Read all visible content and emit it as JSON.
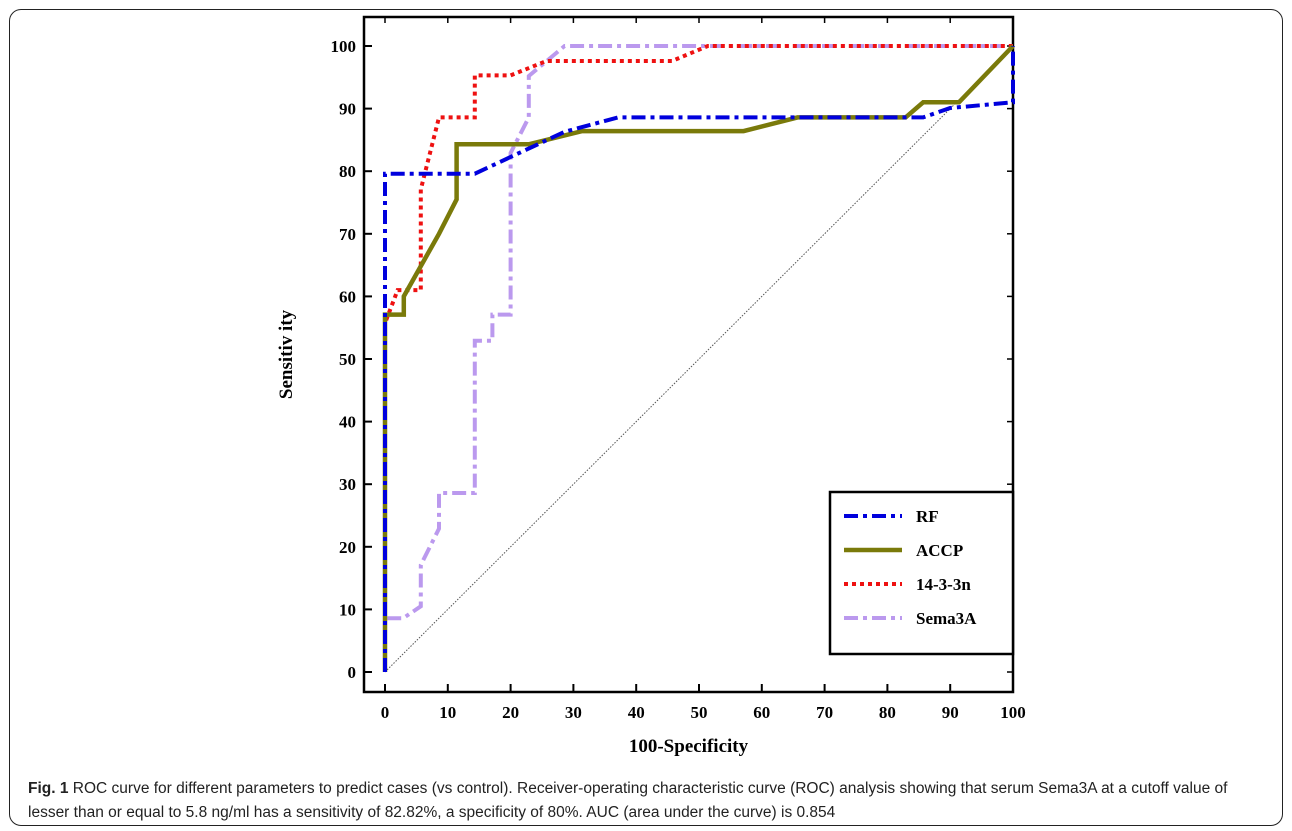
{
  "caption": {
    "label": "Fig. 1",
    "text": " ROC curve for different parameters to predict cases (vs control). Receiver-operating characteristic curve (ROC) analysis showing that serum Sema3A at a cutoff value of lesser than or equal to 5.8 ng/ml has a sensitivity of 82.82%, a specificity of 80%. AUC (area under the curve) is 0.854"
  },
  "chart_data": {
    "type": "line",
    "title": "",
    "xlabel": "100-Specificity",
    "ylabel": "Sensitiv ity",
    "xlim": [
      0,
      100
    ],
    "ylim": [
      0,
      100
    ],
    "xticks": [
      0,
      10,
      20,
      30,
      40,
      50,
      60,
      70,
      80,
      90,
      100
    ],
    "yticks": [
      0,
      10,
      20,
      30,
      40,
      50,
      60,
      70,
      80,
      90,
      100
    ],
    "grid": false,
    "legend_position": "bottom-right",
    "reference_line": {
      "x": [
        0,
        100
      ],
      "y": [
        0,
        100
      ],
      "color": "#555555"
    },
    "series": [
      {
        "name": "RF",
        "color": "#0000dd",
        "style": "dashdot",
        "x": [
          0,
          0,
          0,
          0,
          14.3,
          28.6,
          37.1,
          42.9,
          57.1,
          71.4,
          82.9,
          85.7,
          90,
          100,
          100
        ],
        "y": [
          0,
          57.1,
          60,
          79.6,
          79.6,
          86.3,
          88.6,
          88.6,
          88.6,
          88.6,
          88.6,
          88.6,
          90.1,
          91,
          100
        ]
      },
      {
        "name": "ACCP",
        "color": "#7a7a0a",
        "style": "solid",
        "x": [
          0,
          0,
          3,
          3,
          8.6,
          11.4,
          11.4,
          22.9,
          31.4,
          57.1,
          65.7,
          82.9,
          85.7,
          91.4,
          100
        ],
        "y": [
          0,
          57.1,
          57.1,
          60,
          70,
          75.5,
          84.3,
          84.3,
          86.4,
          86.4,
          88.6,
          88.6,
          91,
          91,
          100
        ]
      },
      {
        "name": "14-3-3n",
        "color": "#ee1111",
        "style": "dotted",
        "x": [
          0,
          0,
          2,
          5.7,
          5.7,
          8.6,
          14.3,
          14.3,
          20,
          25.7,
          25.7,
          45.7,
          51.4,
          100
        ],
        "y": [
          0,
          55.7,
          61,
          61,
          77.1,
          88.6,
          88.6,
          95.3,
          95.3,
          97.6,
          97.6,
          97.6,
          100,
          100
        ]
      },
      {
        "name": "Sema3A",
        "color": "#bb99ee",
        "style": "dashdot",
        "x": [
          0,
          0,
          2.9,
          5.7,
          5.7,
          8.6,
          8.6,
          14.3,
          14.3,
          17.1,
          17.1,
          20,
          20,
          22.9,
          22.9,
          28.6,
          100
        ],
        "y": [
          0,
          8.6,
          8.6,
          10.5,
          17.1,
          22.9,
          28.6,
          28.6,
          52.9,
          52.9,
          57.1,
          57.1,
          82.9,
          88.6,
          95.2,
          100,
          100
        ]
      }
    ]
  }
}
